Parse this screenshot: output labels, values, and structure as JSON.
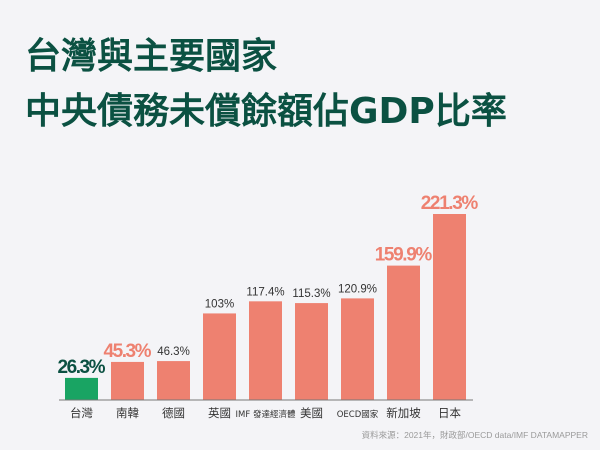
{
  "chart_data": {
    "type": "bar",
    "title": [
      "台灣與主要國家",
      "中央債務未償餘額佔GDP比率"
    ],
    "categories": [
      "台灣",
      "南韓",
      "德國",
      "英國",
      "IMF 發達經濟體",
      "美國",
      "OECD國家",
      "新加坡",
      "日本"
    ],
    "values": [
      26.3,
      45.3,
      46.3,
      103,
      117.4,
      115.3,
      120.9,
      159.9,
      221.3
    ],
    "data_labels": [
      "26.3%",
      "45.3%",
      "46.3%",
      "103%",
      "117.4%",
      "115.3%",
      "120.9%",
      "159.9%",
      "221.3%"
    ],
    "highlight": [
      "taiwan",
      "accent",
      "normal",
      "normal",
      "normal",
      "normal",
      "normal",
      "accent",
      "accent"
    ],
    "xlabel": "",
    "ylabel": "",
    "ylim": [
      0,
      221.3
    ],
    "grid": false,
    "colors": {
      "taiwan_bar": "#19a463",
      "bar": "#ee8170",
      "taiwan_label": "#0b5142",
      "accent_label": "#ee8170",
      "label": "#333333"
    }
  },
  "source": "資料來源：2021年，財政部/OECD data/IMF DATAMAPPER"
}
